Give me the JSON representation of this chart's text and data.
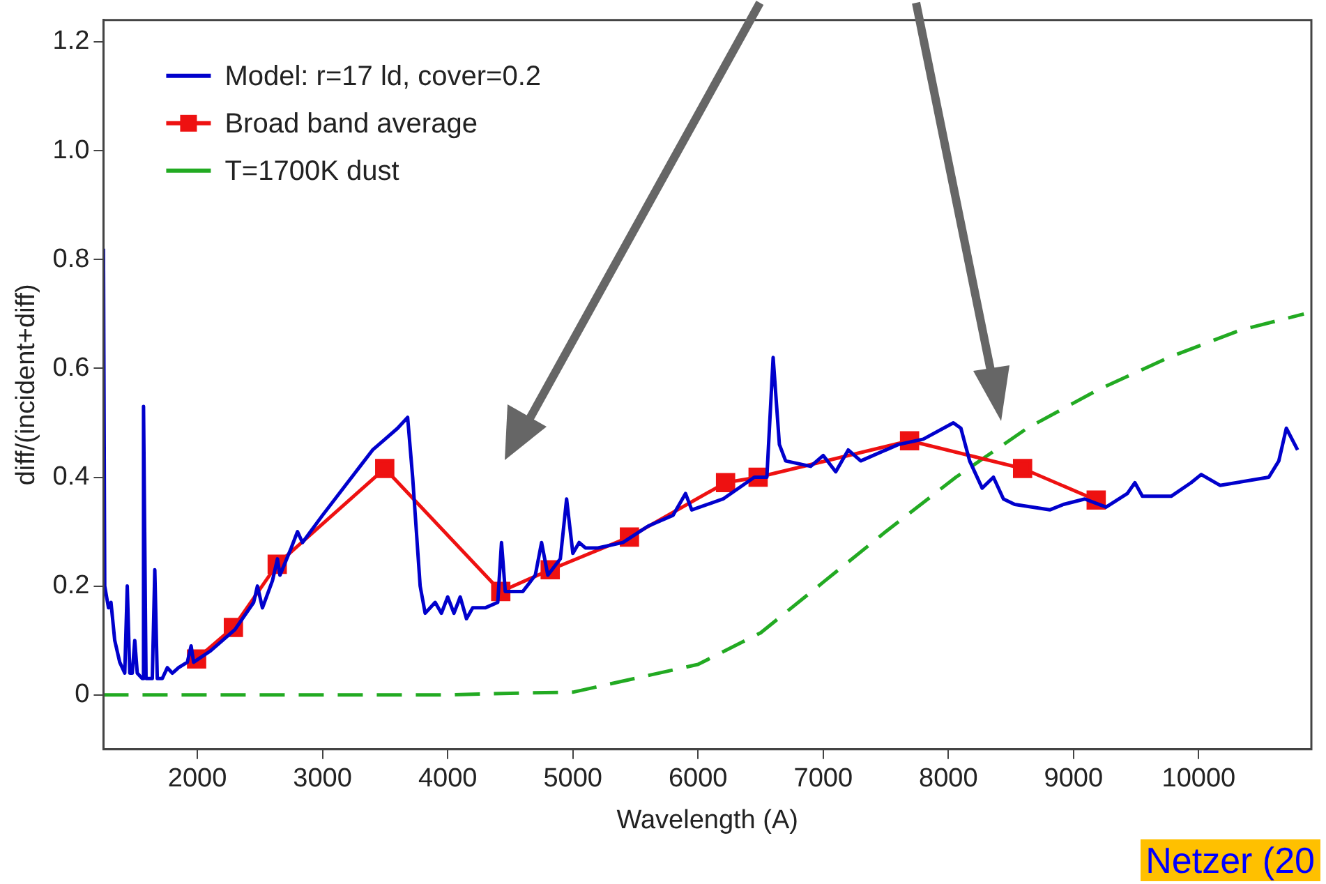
{
  "chart_data": {
    "type": "line",
    "xlabel": "Wavelength (A)",
    "ylabel": "diff/(incident+diff)",
    "annotations": [
      "Netzer (20"
    ],
    "legend": "top left",
    "xlim": [
      1250,
      10900
    ],
    "ylim": [
      -0.1,
      1.24
    ],
    "xticks": [
      2000,
      3000,
      4000,
      5000,
      6000,
      7000,
      8000,
      9000,
      10000
    ],
    "yticks": [
      0,
      0.2,
      0.4,
      0.6,
      0.8,
      {
        "value": 1,
        "label": "1.0"
      },
      1.2
    ],
    "series": [
      {
        "name": "Model: r=17 ld, cover=0.2",
        "color": "#0000cc",
        "marker": "none",
        "line_style": "solid",
        "x": [
          1250,
          1260,
          1290,
          1310,
          1340,
          1380,
          1420,
          1440,
          1460,
          1480,
          1500,
          1520,
          1560,
          1570,
          1590,
          1640,
          1660,
          1680,
          1720,
          1760,
          1800,
          1850,
          1920,
          1950,
          1970,
          2100,
          2300,
          2450,
          2480,
          2520,
          2600,
          2640,
          2660,
          2750,
          2800,
          2840,
          3000,
          3200,
          3300,
          3400,
          3500,
          3600,
          3680,
          3720,
          3780,
          3820,
          3900,
          3950,
          4000,
          4050,
          4100,
          4150,
          4200,
          4300,
          4400,
          4430,
          4460,
          4600,
          4700,
          4750,
          4800,
          4900,
          4950,
          5000,
          5050,
          5100,
          5200,
          5400,
          5600,
          5800,
          5900,
          5950,
          6200,
          6450,
          6550,
          6600,
          6650,
          6700,
          6900,
          7000,
          7100,
          7200,
          7300,
          7600,
          7800,
          8040,
          8100,
          8170,
          8270,
          8360,
          8440,
          8530,
          8810,
          8920,
          9090,
          9260,
          9430,
          9490,
          9550,
          9780,
          9940,
          10020,
          10170,
          10560,
          10640,
          10700,
          10790
        ],
        "values": [
          0.82,
          0.2,
          0.16,
          0.17,
          0.1,
          0.06,
          0.04,
          0.2,
          0.04,
          0.04,
          0.1,
          0.04,
          0.03,
          0.53,
          0.03,
          0.03,
          0.23,
          0.03,
          0.03,
          0.05,
          0.04,
          0.05,
          0.06,
          0.09,
          0.06,
          0.08,
          0.12,
          0.17,
          0.2,
          0.16,
          0.21,
          0.25,
          0.22,
          0.27,
          0.3,
          0.28,
          0.33,
          0.39,
          0.42,
          0.45,
          0.47,
          0.49,
          0.51,
          0.4,
          0.2,
          0.15,
          0.17,
          0.15,
          0.18,
          0.15,
          0.18,
          0.14,
          0.16,
          0.16,
          0.17,
          0.28,
          0.19,
          0.19,
          0.22,
          0.28,
          0.22,
          0.25,
          0.36,
          0.26,
          0.28,
          0.27,
          0.27,
          0.28,
          0.31,
          0.33,
          0.37,
          0.34,
          0.36,
          0.4,
          0.4,
          0.62,
          0.46,
          0.43,
          0.42,
          0.44,
          0.41,
          0.45,
          0.43,
          0.46,
          0.47,
          0.5,
          0.49,
          0.43,
          0.38,
          0.4,
          0.36,
          0.35,
          0.34,
          0.35,
          0.36,
          0.345,
          0.37,
          0.39,
          0.365,
          0.365,
          0.39,
          0.405,
          0.385,
          0.4,
          0.43,
          0.49,
          0.45
        ]
      },
      {
        "name": "Broad band average",
        "color": "#ee1111",
        "marker": "square",
        "line_style": "solid",
        "x": [
          1994,
          2288,
          2638,
          3497,
          4424,
          4819,
          5452,
          6220,
          6480,
          7690,
          8593,
          9181
        ],
        "values": [
          0.066,
          0.124,
          0.24,
          0.416,
          0.19,
          0.23,
          0.29,
          0.39,
          0.4,
          0.467,
          0.416,
          0.358
        ]
      },
      {
        "name": "T=1700K dust",
        "color": "#22aa22",
        "marker": "none",
        "line_style": "dashed",
        "x": [
          1250,
          4000,
          4500,
          5000,
          6000,
          6500,
          7000,
          7500,
          8060,
          8630,
          9190,
          9760,
          10330,
          10840
        ],
        "values": [
          0,
          0,
          0.003,
          0.005,
          0.056,
          0.114,
          0.207,
          0.3,
          0.4,
          0.49,
          0.56,
          0.62,
          0.67,
          0.7
        ]
      }
    ]
  }
}
